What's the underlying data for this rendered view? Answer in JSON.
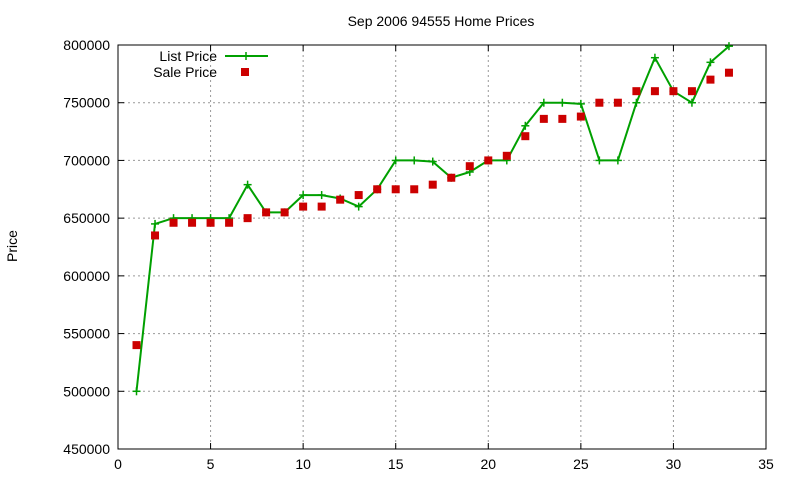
{
  "colors": {
    "list_price": "#00a000",
    "sale_price": "#cc0000",
    "grid": "#999999",
    "axis": "#000000"
  },
  "chart_data": {
    "type": "line",
    "title": "Sep 2006 94555 Home Prices",
    "xlabel": "",
    "ylabel": "Price",
    "xlim": [
      0,
      35
    ],
    "ylim": [
      450000,
      800000
    ],
    "x_ticks": [
      0,
      5,
      10,
      15,
      20,
      25,
      30,
      35
    ],
    "y_ticks": [
      450000,
      500000,
      550000,
      600000,
      650000,
      700000,
      750000,
      800000
    ],
    "x_tick_labels": [
      "0",
      "5",
      "10",
      "15",
      "20",
      "25",
      "30",
      "35"
    ],
    "y_tick_labels": [
      "450000",
      "500000",
      "550000",
      "600000",
      "650000",
      "700000",
      "750000",
      "800000"
    ],
    "grid": true,
    "legend_position": "top-left",
    "series": [
      {
        "name": "List Price",
        "style": "line-with-plus",
        "x": [
          1,
          2,
          3,
          4,
          5,
          6,
          7,
          8,
          9,
          10,
          11,
          12,
          13,
          14,
          15,
          16,
          17,
          18,
          19,
          20,
          21,
          22,
          23,
          24,
          25,
          26,
          27,
          28,
          29,
          30,
          31,
          32,
          33
        ],
        "values": [
          500000,
          645000,
          650000,
          650000,
          650000,
          650000,
          679000,
          655000,
          655000,
          670000,
          670000,
          667000,
          660000,
          675000,
          700000,
          700000,
          699000,
          685000,
          690000,
          700000,
          700000,
          730000,
          750000,
          750000,
          749000,
          700000,
          700000,
          750000,
          789000,
          760000,
          750000,
          785000,
          799000
        ]
      },
      {
        "name": "Sale Price",
        "style": "square-points",
        "x": [
          1,
          2,
          3,
          4,
          5,
          6,
          7,
          8,
          9,
          10,
          11,
          12,
          13,
          14,
          15,
          16,
          17,
          18,
          19,
          20,
          21,
          22,
          23,
          24,
          25,
          26,
          27,
          28,
          29,
          30,
          31,
          32,
          33
        ],
        "values": [
          540000,
          635000,
          646000,
          646000,
          646000,
          646000,
          650000,
          655000,
          655000,
          660000,
          660000,
          666000,
          670000,
          675000,
          675000,
          675000,
          679000,
          685000,
          695000,
          700000,
          704000,
          721000,
          736000,
          736000,
          738000,
          750000,
          750000,
          760000,
          760000,
          760000,
          760000,
          770000,
          776000
        ]
      }
    ]
  }
}
